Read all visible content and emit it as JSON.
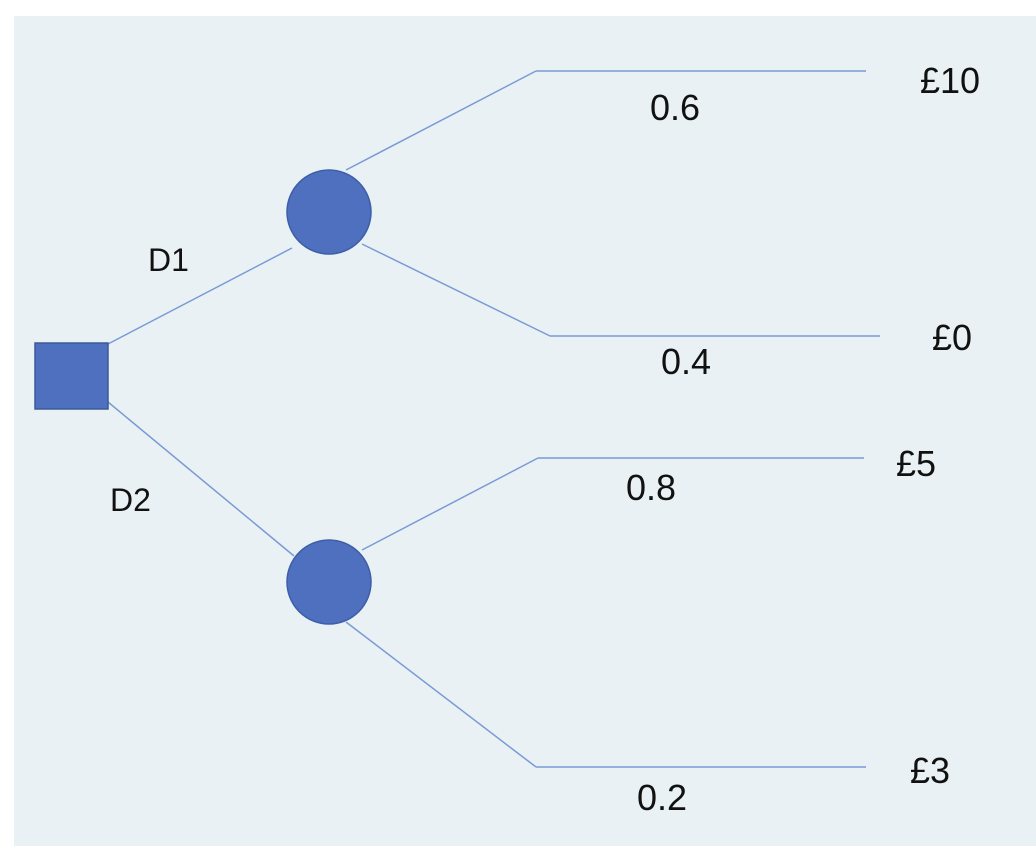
{
  "colors": {
    "background": "#e9f1f4",
    "node_fill": "#4f6fbf",
    "edge": "#7a9ad6"
  },
  "decision_node": {
    "kind": "decision"
  },
  "chance_nodes": [
    {
      "kind": "chance",
      "decision": "D1"
    },
    {
      "kind": "chance",
      "decision": "D2"
    }
  ],
  "branches": [
    {
      "decision": "D1",
      "probability": "0.6",
      "payoff": "£10"
    },
    {
      "decision": "D1",
      "probability": "0.4",
      "payoff": "£0"
    },
    {
      "decision": "D2",
      "probability": "0.8",
      "payoff": "£5"
    },
    {
      "decision": "D2",
      "probability": "0.2",
      "payoff": "£3"
    }
  ],
  "decisions": [
    {
      "label": "D1"
    },
    {
      "label": "D2"
    }
  ]
}
